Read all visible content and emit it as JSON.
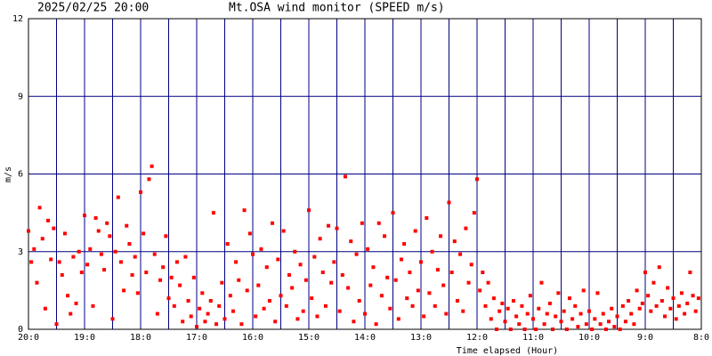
{
  "chart_data": {
    "type": "scatter",
    "date": "2025/02/25 20:00",
    "title": "Mt.OSA wind monitor (SPEED m/s)",
    "y_label": "m/s",
    "x_label": "Time elapsed (Hour)",
    "color": "#ff0000",
    "grid": true,
    "xlim": [
      0,
      12
    ],
    "ylim": [
      0,
      12
    ],
    "xticks": [
      {
        "value": 0,
        "label": "20:0"
      },
      {
        "value": 1,
        "label": "19:0"
      },
      {
        "value": 2,
        "label": "18:0"
      },
      {
        "value": 3,
        "label": "17:0"
      },
      {
        "value": 4,
        "label": "16:0"
      },
      {
        "value": 5,
        "label": "15:0"
      },
      {
        "value": 6,
        "label": "14:0"
      },
      {
        "value": 7,
        "label": "13:0"
      },
      {
        "value": 8,
        "label": "12:0"
      },
      {
        "value": 9,
        "label": "11:0"
      },
      {
        "value": 10,
        "label": "10:0"
      },
      {
        "value": 11,
        "label": "9:0"
      },
      {
        "value": 12,
        "label": "8:0"
      }
    ],
    "xminor": [
      0.5,
      1.5,
      2.5,
      3.5,
      4.5,
      5.5,
      6.5,
      7.5,
      8.5,
      9.5,
      10.5,
      11.5
    ],
    "yticks": [
      0,
      3,
      6,
      9,
      12
    ],
    "x": [
      0,
      0.05,
      0.1,
      0.15,
      0.2,
      0.25,
      0.3,
      0.35,
      0.4,
      0.45,
      0.5,
      0.55,
      0.6,
      0.65,
      0.7,
      0.75,
      0.8,
      0.85,
      0.9,
      0.95,
      1,
      1.05,
      1.1,
      1.15,
      1.2,
      1.25,
      1.3,
      1.35,
      1.4,
      1.45,
      1.5,
      1.55,
      1.6,
      1.65,
      1.7,
      1.75,
      1.8,
      1.85,
      1.9,
      1.95,
      2,
      2.05,
      2.1,
      2.15,
      2.2,
      2.25,
      2.3,
      2.35,
      2.4,
      2.45,
      2.5,
      2.55,
      2.6,
      2.65,
      2.7,
      2.75,
      2.8,
      2.85,
      2.9,
      2.95,
      3,
      3.05,
      3.1,
      3.15,
      3.2,
      3.25,
      3.3,
      3.35,
      3.4,
      3.45,
      3.5,
      3.55,
      3.6,
      3.65,
      3.7,
      3.75,
      3.8,
      3.85,
      3.9,
      3.95,
      4,
      4.05,
      4.1,
      4.15,
      4.2,
      4.25,
      4.3,
      4.35,
      4.4,
      4.45,
      4.5,
      4.55,
      4.6,
      4.65,
      4.7,
      4.75,
      4.8,
      4.85,
      4.9,
      4.95,
      5,
      5.05,
      5.1,
      5.15,
      5.2,
      5.25,
      5.3,
      5.35,
      5.4,
      5.45,
      5.5,
      5.55,
      5.6,
      5.65,
      5.7,
      5.75,
      5.8,
      5.85,
      5.9,
      5.95,
      6,
      6.05,
      6.1,
      6.15,
      6.2,
      6.25,
      6.3,
      6.35,
      6.4,
      6.45,
      6.5,
      6.55,
      6.6,
      6.65,
      6.7,
      6.75,
      6.8,
      6.85,
      6.9,
      6.95,
      7,
      7.05,
      7.1,
      7.15,
      7.2,
      7.25,
      7.3,
      7.35,
      7.4,
      7.45,
      7.5,
      7.55,
      7.6,
      7.65,
      7.7,
      7.75,
      7.8,
      7.85,
      7.9,
      7.95,
      8,
      8.05,
      8.1,
      8.15,
      8.2,
      8.25,
      8.3,
      8.35,
      8.4,
      8.45,
      8.5,
      8.55,
      8.6,
      8.65,
      8.7,
      8.75,
      8.8,
      8.85,
      8.9,
      8.95,
      9,
      9.05,
      9.1,
      9.15,
      9.2,
      9.25,
      9.3,
      9.35,
      9.4,
      9.45,
      9.5,
      9.55,
      9.6,
      9.65,
      9.7,
      9.75,
      9.8,
      9.85,
      9.9,
      9.95,
      10,
      10.05,
      10.1,
      10.15,
      10.2,
      10.25,
      10.3,
      10.35,
      10.4,
      10.45,
      10.5,
      10.55,
      10.6,
      10.65,
      10.7,
      10.75,
      10.8,
      10.85,
      10.9,
      10.95,
      11,
      11.05,
      11.1,
      11.15,
      11.2,
      11.25,
      11.3,
      11.35,
      11.4,
      11.45,
      11.5,
      11.55,
      11.6,
      11.65,
      11.7,
      11.75,
      11.8,
      11.85,
      11.9,
      11.95
    ],
    "values": [
      3.8,
      2.6,
      3.1,
      1.8,
      4.7,
      3.5,
      0.8,
      4.2,
      2.7,
      3.9,
      0.2,
      2.6,
      2.1,
      3.7,
      1.3,
      0.6,
      2.8,
      1.0,
      3.0,
      2.2,
      4.4,
      2.5,
      3.1,
      0.9,
      4.3,
      3.8,
      2.9,
      2.3,
      4.1,
      3.6,
      0.4,
      3.0,
      5.1,
      2.6,
      1.5,
      4.0,
      3.3,
      2.1,
      2.8,
      1.4,
      5.3,
      3.7,
      2.2,
      5.8,
      6.3,
      2.9,
      0.6,
      1.9,
      2.4,
      3.6,
      1.2,
      2.0,
      0.9,
      2.6,
      1.7,
      0.3,
      2.8,
      1.1,
      0.5,
      2.0,
      0.1,
      0.8,
      1.4,
      0.3,
      0.6,
      1.1,
      4.5,
      0.2,
      0.9,
      1.8,
      0.4,
      3.3,
      1.3,
      0.7,
      2.6,
      1.9,
      0.2,
      4.6,
      1.5,
      3.7,
      2.9,
      0.5,
      1.7,
      3.1,
      0.8,
      2.4,
      1.1,
      4.1,
      0.3,
      2.7,
      1.3,
      3.8,
      0.9,
      2.1,
      1.6,
      3.0,
      0.4,
      2.5,
      0.7,
      1.9,
      4.6,
      1.2,
      2.8,
      0.5,
      3.5,
      2.2,
      0.9,
      4.0,
      1.8,
      2.6,
      3.9,
      0.7,
      2.1,
      5.9,
      1.6,
      3.4,
      0.3,
      2.9,
      1.1,
      4.1,
      0.6,
      3.1,
      1.7,
      2.4,
      0.2,
      4.1,
      1.3,
      3.6,
      2.0,
      0.8,
      4.5,
      1.9,
      0.4,
      2.7,
      3.3,
      1.2,
      2.2,
      0.9,
      3.8,
      1.5,
      2.6,
      0.5,
      4.3,
      1.4,
      3.0,
      0.9,
      2.3,
      3.6,
      1.7,
      0.6,
      4.9,
      2.2,
      3.4,
      1.1,
      2.9,
      0.7,
      3.9,
      1.8,
      2.5,
      4.5,
      5.8,
      1.5,
      2.2,
      0.9,
      1.8,
      0.4,
      1.2,
      0.0,
      0.7,
      1.0,
      0.3,
      0.8,
      0.0,
      1.1,
      0.5,
      0.2,
      0.9,
      0.0,
      0.6,
      1.3,
      0.4,
      0.0,
      0.8,
      1.8,
      0.2,
      0.6,
      1.0,
      0.0,
      0.5,
      1.4,
      0.3,
      0.7,
      0.0,
      1.2,
      0.4,
      0.9,
      0.1,
      0.6,
      1.5,
      0.2,
      0.7,
      0.0,
      0.4,
      1.4,
      0.2,
      0.6,
      0.0,
      0.3,
      0.8,
      0.1,
      0.5,
      0.0,
      0.9,
      0.3,
      1.1,
      0.6,
      0.2,
      1.5,
      0.8,
      1.0,
      2.2,
      1.3,
      0.7,
      1.8,
      0.9,
      2.4,
      1.1,
      0.5,
      1.6,
      0.8,
      1.2,
      0.4,
      0.9,
      1.4,
      0.6,
      1.0,
      2.2,
      1.3,
      0.7,
      1.2
    ]
  }
}
